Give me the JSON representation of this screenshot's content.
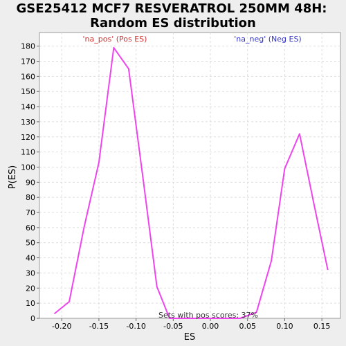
{
  "chart_data": {
    "type": "line",
    "title": [
      "GSE25412 MCF7 RESVERATROL 250MM 48H:",
      "Random ES distribution"
    ],
    "xlabel": "ES",
    "ylabel": "P(ES)",
    "xlim": [
      -0.23,
      0.175
    ],
    "ylim": [
      0,
      189
    ],
    "x_ticks": [
      -0.2,
      -0.15,
      -0.1,
      -0.05,
      0.0,
      0.05,
      0.1,
      0.15
    ],
    "x_tick_labels": [
      "-0.20",
      "-0.15",
      "-0.10",
      "-0.05",
      "0.00",
      "0.05",
      "0.10",
      "0.15"
    ],
    "y_ticks": [
      0,
      10,
      20,
      30,
      40,
      50,
      60,
      70,
      80,
      90,
      100,
      110,
      120,
      130,
      140,
      150,
      160,
      170,
      180
    ],
    "grid": true,
    "legend": [
      {
        "label": "'na_pos' (Pos ES)",
        "color": "#cc3333",
        "placement": "top-left"
      },
      {
        "label": "'na_neg' (Neg ES)",
        "color": "#3333cc",
        "placement": "top-right"
      }
    ],
    "annotation": "Sets with pos scores: 37%",
    "series": [
      {
        "color": "#ee44ee",
        "x": [
          -0.21,
          -0.19,
          -0.17,
          -0.15,
          -0.13,
          -0.11,
          -0.09,
          -0.072,
          -0.055,
          -0.04,
          -0.02,
          0.0,
          0.02,
          0.04,
          0.062,
          0.082,
          0.1,
          0.12,
          0.14,
          0.158
        ],
        "y": [
          3,
          11,
          60,
          103,
          179,
          165,
          90,
          21,
          0,
          0,
          0,
          0,
          0,
          0,
          4,
          38,
          99,
          122,
          74,
          32
        ]
      }
    ]
  }
}
